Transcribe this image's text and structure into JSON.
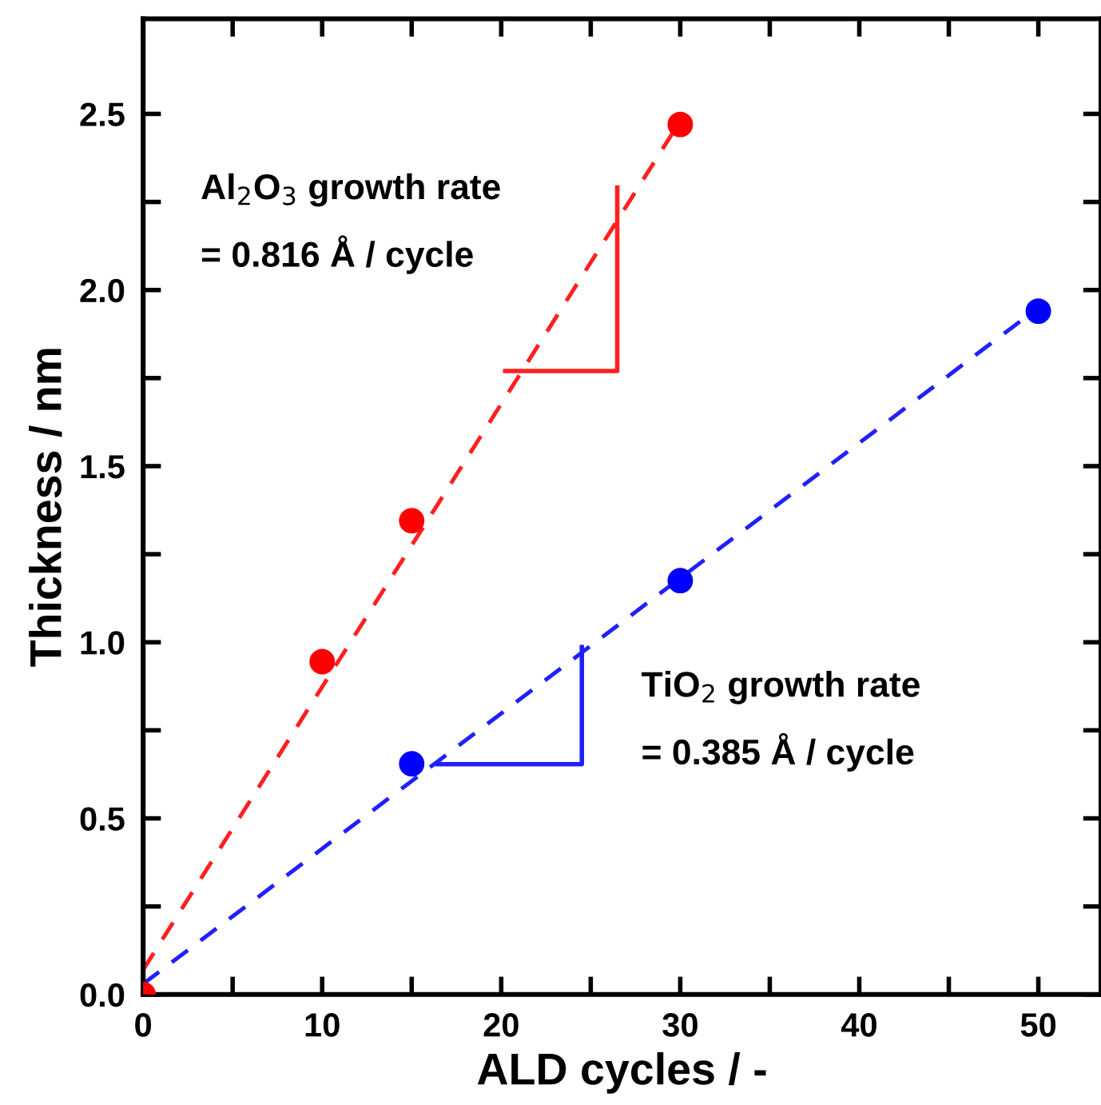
{
  "chart_data": {
    "type": "scatter",
    "xlabel": "ALD cycles / -",
    "ylabel": "Thickness / nm",
    "xlim": [
      0,
      53.5
    ],
    "ylim": [
      0,
      2.77
    ],
    "xticks": [
      0,
      {
        "value": 5,
        "label": null
      },
      10,
      {
        "value": 15,
        "label": null
      },
      20,
      {
        "value": 25,
        "label": null
      },
      30,
      {
        "value": 35,
        "label": null
      },
      40,
      {
        "value": 45,
        "label": null
      },
      50
    ],
    "yticks": [
      {
        "value": 0,
        "label": "0.0"
      },
      {
        "value": 0.25,
        "label": null
      },
      0.5,
      {
        "value": 0.75,
        "label": null
      },
      {
        "value": 1,
        "label": "1.0"
      },
      {
        "value": 1.25,
        "label": null
      },
      1.5,
      {
        "value": 1.75,
        "label": null
      },
      {
        "value": 2,
        "label": "2.0"
      },
      {
        "value": 2.25,
        "label": null
      },
      2.5
    ],
    "grid": false,
    "legend": false,
    "annotations": [
      "Al$_{2}$O$_{3}$ growth rate\n= 0.816 Å / cycle",
      "TiO$_{2}$ growth rate\n= 0.385 Å / cycle"
    ],
    "series": [
      {
        "type": "line",
        "color": "#ff2020",
        "line_style": "dashed",
        "marker": "none",
        "x": [
          0,
          30
        ],
        "values": [
          0.07,
          2.48
        ]
      },
      {
        "type": "line",
        "color": "#2020ff",
        "line_style": "dashed",
        "marker": "none",
        "x": [
          0,
          50
        ],
        "values": [
          0.03,
          1.95
        ]
      },
      {
        "color": "#ff0000",
        "marker": "circle",
        "x": [
          0,
          10,
          15,
          30
        ],
        "values": [
          0,
          0.945,
          1.345,
          2.47
        ]
      },
      {
        "color": "#0000ff",
        "marker": "circle",
        "x": [
          15,
          30,
          50
        ],
        "values": [
          0.655,
          1.175,
          1.94
        ]
      }
    ]
  }
}
